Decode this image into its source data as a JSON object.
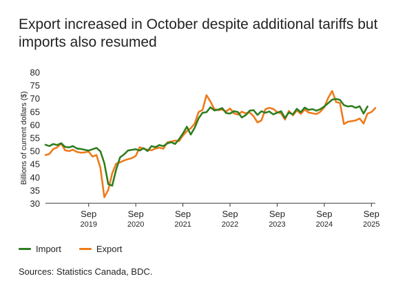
{
  "title": "Export increased in October despite additional tariffs but imports also resumed",
  "source": "Sources: Statistics Canada, BDC.",
  "colors": {
    "import": "#2e7d1f",
    "export": "#ee7a1a",
    "axis": "#333333",
    "text": "#222222"
  },
  "chart_data": {
    "type": "line",
    "title": "Export increased in October despite additional tariffs but imports also resumed",
    "ylabel": "Billions of current dollars ($)",
    "xlabel": "",
    "ylim": [
      30,
      80
    ],
    "yticks": [
      30,
      35,
      40,
      45,
      50,
      55,
      60,
      65,
      70,
      75,
      80
    ],
    "xrange": [
      "2018-10",
      "2025-10"
    ],
    "xticks": [
      {
        "date": "2019-09",
        "label_top": "Sep",
        "label_bottom": "2019"
      },
      {
        "date": "2020-09",
        "label_top": "Sep",
        "label_bottom": "2020"
      },
      {
        "date": "2021-09",
        "label_top": "Sep",
        "label_bottom": "2021"
      },
      {
        "date": "2022-09",
        "label_top": "Sep",
        "label_bottom": "2022"
      },
      {
        "date": "2023-09",
        "label_top": "Sep",
        "label_bottom": "2023"
      },
      {
        "date": "2024-09",
        "label_top": "Sep",
        "label_bottom": "2024"
      },
      {
        "date": "2025-09",
        "label_top": "Sep",
        "label_bottom": "2025"
      }
    ],
    "grid": false,
    "legend_position": "bottom-left",
    "series": [
      {
        "name": "Import",
        "color": "#2e7d1f",
        "points": [
          [
            "2018-10",
            52.3
          ],
          [
            "2018-11",
            51.8
          ],
          [
            "2018-12",
            52.6
          ],
          [
            "2019-01",
            52.2
          ],
          [
            "2019-02",
            52.9
          ],
          [
            "2019-03",
            51.5
          ],
          [
            "2019-04",
            51.3
          ],
          [
            "2019-05",
            51.8
          ],
          [
            "2019-06",
            50.9
          ],
          [
            "2019-07",
            50.7
          ],
          [
            "2019-08",
            50.4
          ],
          [
            "2019-09",
            50.1
          ],
          [
            "2019-10",
            50.6
          ],
          [
            "2019-11",
            51.1
          ],
          [
            "2019-12",
            49.8
          ],
          [
            "2020-01",
            45.3
          ],
          [
            "2020-02",
            37.3
          ],
          [
            "2020-03",
            36.7
          ],
          [
            "2020-04",
            42.8
          ],
          [
            "2020-05",
            47.5
          ],
          [
            "2020-06",
            48.6
          ],
          [
            "2020-07",
            50.1
          ],
          [
            "2020-08",
            50.4
          ],
          [
            "2020-09",
            50.6
          ],
          [
            "2020-10",
            50.1
          ],
          [
            "2020-11",
            51.0
          ],
          [
            "2020-12",
            49.9
          ],
          [
            "2021-01",
            51.8
          ],
          [
            "2021-02",
            51.4
          ],
          [
            "2021-03",
            52.2
          ],
          [
            "2021-04",
            51.8
          ],
          [
            "2021-05",
            52.8
          ],
          [
            "2021-06",
            53.3
          ],
          [
            "2021-07",
            52.6
          ],
          [
            "2021-08",
            54.4
          ],
          [
            "2021-09",
            56.6
          ],
          [
            "2021-10",
            59.2
          ],
          [
            "2021-11",
            56.2
          ],
          [
            "2021-12",
            58.8
          ],
          [
            "2022-01",
            62.4
          ],
          [
            "2022-02",
            64.5
          ],
          [
            "2022-03",
            64.7
          ],
          [
            "2022-04",
            66.6
          ],
          [
            "2022-05",
            65.4
          ],
          [
            "2022-06",
            65.7
          ],
          [
            "2022-07",
            66.3
          ],
          [
            "2022-08",
            64.4
          ],
          [
            "2022-09",
            64.2
          ],
          [
            "2022-10",
            65.1
          ],
          [
            "2022-11",
            64.8
          ],
          [
            "2022-12",
            62.7
          ],
          [
            "2023-01",
            63.6
          ],
          [
            "2023-02",
            65.3
          ],
          [
            "2023-03",
            65.5
          ],
          [
            "2023-04",
            63.7
          ],
          [
            "2023-05",
            65.1
          ],
          [
            "2023-06",
            64.5
          ],
          [
            "2023-07",
            65.0
          ],
          [
            "2023-08",
            63.9
          ],
          [
            "2023-09",
            64.5
          ],
          [
            "2023-10",
            65.1
          ],
          [
            "2023-11",
            62.5
          ],
          [
            "2023-12",
            64.6
          ],
          [
            "2024-01",
            63.9
          ],
          [
            "2024-02",
            66.0
          ],
          [
            "2024-03",
            64.7
          ],
          [
            "2024-04",
            66.5
          ],
          [
            "2024-05",
            65.6
          ],
          [
            "2024-06",
            65.9
          ],
          [
            "2024-07",
            65.3
          ],
          [
            "2024-08",
            65.9
          ],
          [
            "2024-09",
            66.9
          ],
          [
            "2024-10",
            68.2
          ],
          [
            "2024-11",
            69.5
          ],
          [
            "2024-12",
            69.8
          ],
          [
            "2025-01",
            69.4
          ],
          [
            "2025-02",
            67.4
          ],
          [
            "2025-03",
            66.9
          ],
          [
            "2025-04",
            67.1
          ],
          [
            "2025-05",
            66.4
          ],
          [
            "2025-06",
            67.0
          ],
          [
            "2025-07",
            64.2
          ],
          [
            "2025-08",
            66.9
          ]
        ]
      },
      {
        "name": "Export",
        "color": "#ee7a1a",
        "points": [
          [
            "2018-10",
            48.4
          ],
          [
            "2018-11",
            48.8
          ],
          [
            "2018-12",
            50.7
          ],
          [
            "2019-01",
            51.3
          ],
          [
            "2019-02",
            52.8
          ],
          [
            "2019-03",
            50.2
          ],
          [
            "2019-04",
            49.9
          ],
          [
            "2019-05",
            50.4
          ],
          [
            "2019-06",
            49.6
          ],
          [
            "2019-07",
            49.3
          ],
          [
            "2019-08",
            49.4
          ],
          [
            "2019-09",
            49.7
          ],
          [
            "2019-10",
            47.8
          ],
          [
            "2019-11",
            48.4
          ],
          [
            "2019-12",
            43.5
          ],
          [
            "2020-01",
            32.3
          ],
          [
            "2020-02",
            35.1
          ],
          [
            "2020-03",
            41.4
          ],
          [
            "2020-04",
            45.1
          ],
          [
            "2020-05",
            45.6
          ],
          [
            "2020-06",
            46.3
          ],
          [
            "2020-07",
            46.8
          ],
          [
            "2020-08",
            47.2
          ],
          [
            "2020-09",
            48.1
          ],
          [
            "2020-10",
            51.4
          ],
          [
            "2020-11",
            50.8
          ],
          [
            "2020-12",
            50.4
          ],
          [
            "2021-01",
            50.2
          ],
          [
            "2021-02",
            50.9
          ],
          [
            "2021-03",
            51.2
          ],
          [
            "2021-04",
            50.8
          ],
          [
            "2021-05",
            53.2
          ],
          [
            "2021-06",
            53.5
          ],
          [
            "2021-07",
            53.9
          ],
          [
            "2021-08",
            53.7
          ],
          [
            "2021-09",
            55.8
          ],
          [
            "2021-10",
            57.5
          ],
          [
            "2021-11",
            58.6
          ],
          [
            "2021-12",
            60.4
          ],
          [
            "2022-01",
            64.8
          ],
          [
            "2022-02",
            65.6
          ],
          [
            "2022-03",
            71.2
          ],
          [
            "2022-04",
            68.8
          ],
          [
            "2022-05",
            65.9
          ],
          [
            "2022-06",
            65.5
          ],
          [
            "2022-07",
            65.7
          ],
          [
            "2022-08",
            65.0
          ],
          [
            "2022-09",
            66.1
          ],
          [
            "2022-10",
            64.3
          ],
          [
            "2022-11",
            63.8
          ],
          [
            "2022-12",
            64.9
          ],
          [
            "2023-01",
            64.3
          ],
          [
            "2023-02",
            64.6
          ],
          [
            "2023-03",
            63.2
          ],
          [
            "2023-04",
            60.8
          ],
          [
            "2023-05",
            61.6
          ],
          [
            "2023-06",
            65.8
          ],
          [
            "2023-07",
            66.4
          ],
          [
            "2023-08",
            66.0
          ],
          [
            "2023-09",
            64.8
          ],
          [
            "2023-10",
            64.3
          ],
          [
            "2023-11",
            61.9
          ],
          [
            "2023-12",
            65.2
          ],
          [
            "2024-01",
            63.5
          ],
          [
            "2024-02",
            65.4
          ],
          [
            "2024-03",
            64.1
          ],
          [
            "2024-04",
            65.7
          ],
          [
            "2024-05",
            64.6
          ],
          [
            "2024-06",
            64.3
          ],
          [
            "2024-07",
            64.0
          ],
          [
            "2024-08",
            64.9
          ],
          [
            "2024-09",
            66.6
          ],
          [
            "2024-10",
            70.2
          ],
          [
            "2024-11",
            72.8
          ],
          [
            "2024-12",
            68.6
          ],
          [
            "2025-01",
            68.2
          ],
          [
            "2025-02",
            60.2
          ],
          [
            "2025-03",
            61.1
          ],
          [
            "2025-04",
            61.3
          ],
          [
            "2025-05",
            61.6
          ],
          [
            "2025-06",
            62.3
          ],
          [
            "2025-07",
            60.4
          ],
          [
            "2025-08",
            64.2
          ],
          [
            "2025-09",
            64.8
          ],
          [
            "2025-10",
            66.3
          ]
        ]
      }
    ]
  }
}
